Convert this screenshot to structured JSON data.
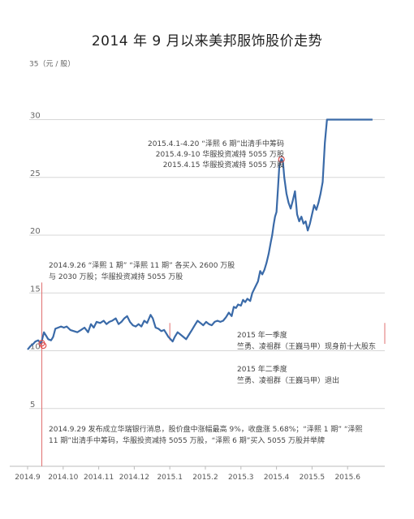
{
  "title": "2014 年 9 月以来美邦服饰股价走势",
  "chart_data": {
    "type": "line",
    "title": "2014 年 9 月以来美邦服饰股价走势",
    "ylabel": "35（元 / 股）",
    "ylim": [
      5,
      35
    ],
    "y_ticks": [
      5,
      10,
      15,
      20,
      25,
      30
    ],
    "y_tick_labels": [
      "5",
      "10",
      "15",
      "20",
      "25",
      "30"
    ],
    "x_ticks": [
      "2014.9",
      "2014.10",
      "2014.11",
      "2014.12",
      "2015.1",
      "2015.2",
      "2015.3",
      "2015.4",
      "2015.5",
      "2015.6"
    ],
    "grid": true,
    "series": [
      {
        "color": "#3a6aa8",
        "points": [
          [
            0,
            10.1
          ],
          [
            0.08,
            10.4
          ],
          [
            0.16,
            10.6
          ],
          [
            0.22,
            10.8
          ],
          [
            0.3,
            10.9
          ],
          [
            0.38,
            10.6
          ],
          [
            0.46,
            11.6
          ],
          [
            0.52,
            11.3
          ],
          [
            0.58,
            11.0
          ],
          [
            0.66,
            10.9
          ],
          [
            0.72,
            11.2
          ],
          [
            0.78,
            11.9
          ],
          [
            0.86,
            12.0
          ],
          [
            0.94,
            12.1
          ],
          [
            1.02,
            12.0
          ],
          [
            1.1,
            12.1
          ],
          [
            1.2,
            11.8
          ],
          [
            1.3,
            11.7
          ],
          [
            1.4,
            11.6
          ],
          [
            1.5,
            11.8
          ],
          [
            1.6,
            12.0
          ],
          [
            1.7,
            11.6
          ],
          [
            1.78,
            12.3
          ],
          [
            1.86,
            12.0
          ],
          [
            1.94,
            12.5
          ],
          [
            2.04,
            12.4
          ],
          [
            2.14,
            12.6
          ],
          [
            2.22,
            12.3
          ],
          [
            2.3,
            12.5
          ],
          [
            2.38,
            12.6
          ],
          [
            2.48,
            12.8
          ],
          [
            2.56,
            12.3
          ],
          [
            2.64,
            12.5
          ],
          [
            2.72,
            12.8
          ],
          [
            2.8,
            13.0
          ],
          [
            2.88,
            12.5
          ],
          [
            2.96,
            12.2
          ],
          [
            3.04,
            12.1
          ],
          [
            3.12,
            12.3
          ],
          [
            3.2,
            12.1
          ],
          [
            3.28,
            12.6
          ],
          [
            3.36,
            12.4
          ],
          [
            3.46,
            13.1
          ],
          [
            3.52,
            12.8
          ],
          [
            3.6,
            12.0
          ],
          [
            3.68,
            11.9
          ],
          [
            3.76,
            11.7
          ],
          [
            3.84,
            11.8
          ],
          [
            3.9,
            11.5
          ],
          [
            3.96,
            11.2
          ],
          [
            4.02,
            11.0
          ],
          [
            4.08,
            10.8
          ],
          [
            4.14,
            11.2
          ],
          [
            4.22,
            11.6
          ],
          [
            4.3,
            11.4
          ],
          [
            4.38,
            11.2
          ],
          [
            4.46,
            11.0
          ],
          [
            4.54,
            11.4
          ],
          [
            4.62,
            11.8
          ],
          [
            4.7,
            12.2
          ],
          [
            4.78,
            12.6
          ],
          [
            4.86,
            12.4
          ],
          [
            4.94,
            12.2
          ],
          [
            5.02,
            12.5
          ],
          [
            5.1,
            12.3
          ],
          [
            5.18,
            12.2
          ],
          [
            5.26,
            12.5
          ],
          [
            5.34,
            12.6
          ],
          [
            5.42,
            12.5
          ],
          [
            5.5,
            12.6
          ],
          [
            5.58,
            12.9
          ],
          [
            5.66,
            13.3
          ],
          [
            5.74,
            13.0
          ],
          [
            5.8,
            13.8
          ],
          [
            5.86,
            13.7
          ],
          [
            5.92,
            14.0
          ],
          [
            6.0,
            13.9
          ],
          [
            6.06,
            14.4
          ],
          [
            6.12,
            14.2
          ],
          [
            6.18,
            14.5
          ],
          [
            6.26,
            14.3
          ],
          [
            6.32,
            15.0
          ],
          [
            6.4,
            15.5
          ],
          [
            6.48,
            16.0
          ],
          [
            6.54,
            16.9
          ],
          [
            6.6,
            16.6
          ],
          [
            6.66,
            17.0
          ],
          [
            6.72,
            17.6
          ],
          [
            6.78,
            18.4
          ],
          [
            6.84,
            19.4
          ],
          [
            6.88,
            20.0
          ],
          [
            6.92,
            20.9
          ],
          [
            6.96,
            21.6
          ],
          [
            7.0,
            22.0
          ],
          [
            7.04,
            24.0
          ],
          [
            7.08,
            26.0
          ],
          [
            7.14,
            26.6
          ],
          [
            7.18,
            26.4
          ],
          [
            7.22,
            25.0
          ],
          [
            7.28,
            23.6
          ],
          [
            7.34,
            22.8
          ],
          [
            7.4,
            22.3
          ],
          [
            7.46,
            23.0
          ],
          [
            7.52,
            23.8
          ],
          [
            7.58,
            21.8
          ],
          [
            7.64,
            21.2
          ],
          [
            7.7,
            21.6
          ],
          [
            7.76,
            21.0
          ],
          [
            7.82,
            21.2
          ],
          [
            7.88,
            20.4
          ],
          [
            7.94,
            21.0
          ],
          [
            8.0,
            21.8
          ],
          [
            8.06,
            22.6
          ],
          [
            8.12,
            22.2
          ],
          [
            8.18,
            22.8
          ],
          [
            8.24,
            23.6
          ],
          [
            8.3,
            24.6
          ],
          [
            8.36,
            28.0
          ],
          [
            8.42,
            30.0
          ],
          [
            9.0,
            30.0
          ],
          [
            9.7,
            30.0
          ]
        ]
      }
    ],
    "annotations": [
      {
        "lines": [
          "2015.4.1-4.20 “泽熙 6 期”出清手中筹码",
          "2015.4.9-10  华服投资减持 5055 万股",
          "2015.4.15  华服投资减持 5055 万股"
        ]
      },
      {
        "lines": [
          "2014.9.26 “泽熙 1 期” “泽熙 11 期” 各买入 2600 万股",
          "与 2030 万股；华服投资减持 5055 万股"
        ]
      },
      {
        "lines": [
          "2015 年一季度",
          "竺勇、凌祖群（王巍马甲）现身前十大股东"
        ]
      },
      {
        "lines": [
          "2015 年二季度",
          "竺勇、凌祖群（王巍马甲）退出"
        ]
      },
      {
        "lines": [
          "2014.9.29 发布成立华瑞银行消息，股价盘中涨幅最高 9%，收盘涨 5.68%；“泽熙 1 期” “泽熙",
          "11 期”出清手中筹码，华服投资减持 5055 万股，“泽熙 6 期”买入 5055 万股并举牌"
        ]
      }
    ]
  }
}
